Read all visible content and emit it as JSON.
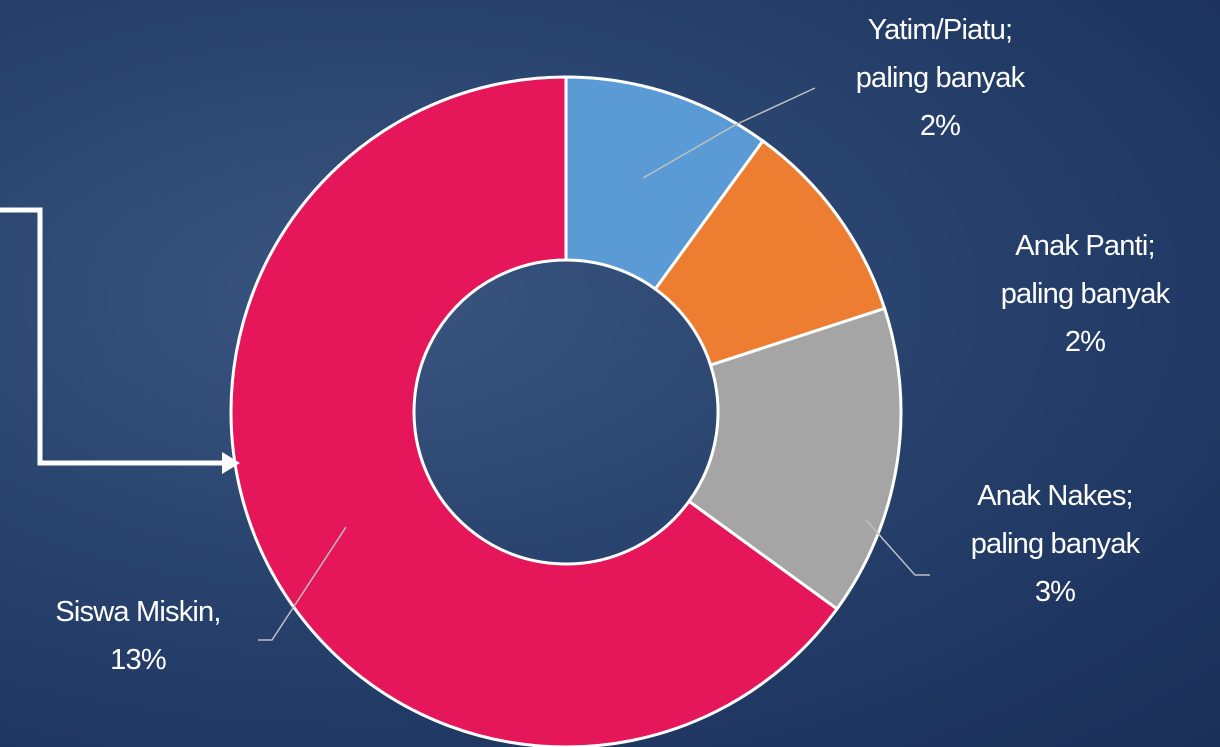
{
  "chart_data": {
    "type": "donut",
    "categories": [
      "Yatim/Piatu; paling banyak",
      "Anak Panti; paling banyak",
      "Anak Nakes; paling banyak",
      "Siswa Miskin,"
    ],
    "values": [
      2,
      2,
      3,
      13
    ],
    "value_labels": [
      "2%",
      "2%",
      "3%",
      "13%"
    ],
    "colors": [
      "#5b9bd5",
      "#ed7d31",
      "#a5a5a5",
      "#e5175a"
    ]
  }
}
